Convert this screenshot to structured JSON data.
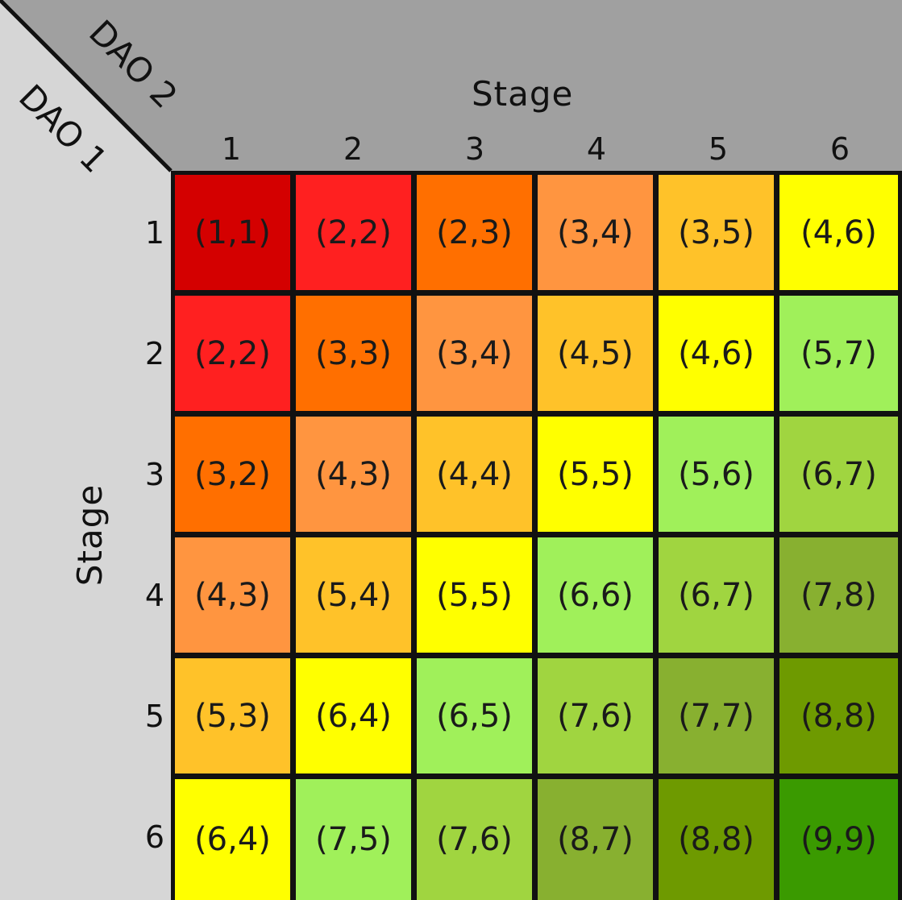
{
  "top_axis": {
    "label": "Stage",
    "corner_label": "DAO 2",
    "ticks": [
      "1",
      "2",
      "3",
      "4",
      "5",
      "6"
    ]
  },
  "left_axis": {
    "label": "Stage",
    "corner_label": "DAO 1",
    "ticks": [
      "1",
      "2",
      "3",
      "4",
      "5",
      "6"
    ]
  },
  "cells": [
    [
      "(1,1)",
      "(2,2)",
      "(2,3)",
      "(3,4)",
      "(3,5)",
      "(4,6)"
    ],
    [
      "(2,2)",
      "(3,3)",
      "(3,4)",
      "(4,5)",
      "(4,6)",
      "(5,7)"
    ],
    [
      "(3,2)",
      "(4,3)",
      "(4,4)",
      "(5,5)",
      "(5,6)",
      "(6,7)"
    ],
    [
      "(4,3)",
      "(5,4)",
      "(5,5)",
      "(6,6)",
      "(6,7)",
      "(7,8)"
    ],
    [
      "(5,3)",
      "(6,4)",
      "(6,5)",
      "(7,6)",
      "(7,7)",
      "(8,8)"
    ],
    [
      "(6,4)",
      "(7,5)",
      "(7,6)",
      "(8,7)",
      "(8,8)",
      "(9,9)"
    ]
  ],
  "colors": {
    "background_light": "#d6d6d6",
    "background_dark": "#a0a0a0",
    "grid_lines": "#111111",
    "scale": [
      "#d40000",
      "#ff2020",
      "#ff6f00",
      "#ff9540",
      "#ffc229",
      "#ffff00",
      "#a0f05a",
      "#a0d540",
      "#88b030",
      "#6e9a00",
      "#3a9a00"
    ]
  }
}
